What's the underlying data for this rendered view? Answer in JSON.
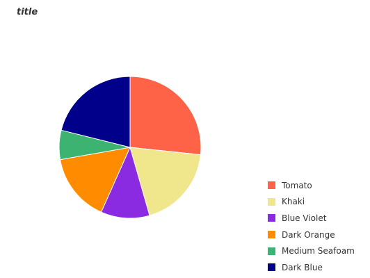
{
  "chart_data": {
    "type": "pie",
    "title": "title",
    "legend_position": "bottom-right",
    "series": [
      {
        "name": "Tomato",
        "value": 24,
        "color": "#FF6347"
      },
      {
        "name": "Khaki",
        "value": 17,
        "color": "#F0E68C"
      },
      {
        "name": "Blue Violet",
        "value": 10,
        "color": "#8A2BE2"
      },
      {
        "name": "Dark Orange",
        "value": 14,
        "color": "#FF8C00"
      },
      {
        "name": "Medium Seafoam",
        "value": 6,
        "color": "#3CB371"
      },
      {
        "name": "Dark Blue",
        "value": 19,
        "color": "#00008B"
      }
    ]
  }
}
